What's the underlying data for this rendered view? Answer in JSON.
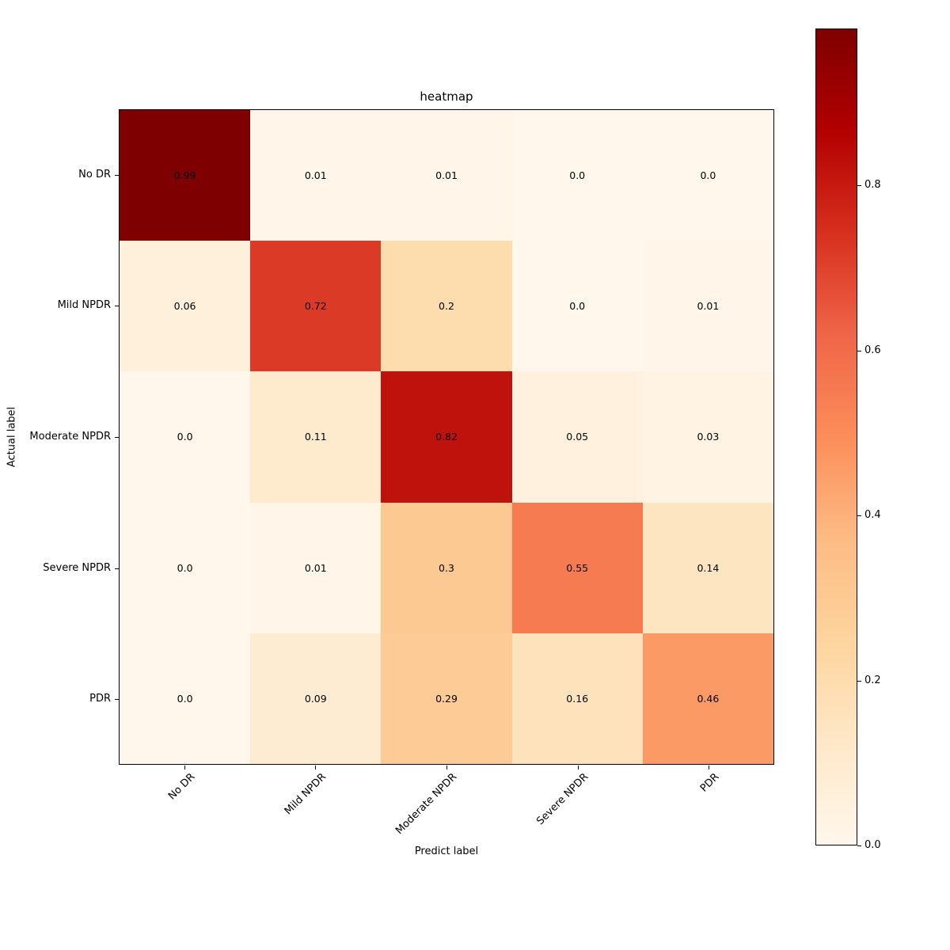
{
  "chart_data": {
    "type": "heatmap",
    "title": "heatmap",
    "xlabel": "Predict label",
    "ylabel": "Actual label",
    "x_categories": [
      "No DR",
      "Mild NPDR",
      "Moderate NPDR",
      "Severe NPDR",
      "PDR"
    ],
    "y_categories": [
      "No DR",
      "Mild NPDR",
      "Moderate NPDR",
      "Severe NPDR",
      "PDR"
    ],
    "values": [
      [
        0.99,
        0.01,
        0.01,
        0.0,
        0.0
      ],
      [
        0.06,
        0.72,
        0.2,
        0.0,
        0.01
      ],
      [
        0.0,
        0.11,
        0.82,
        0.05,
        0.03
      ],
      [
        0.0,
        0.01,
        0.3,
        0.55,
        0.14
      ],
      [
        0.0,
        0.09,
        0.29,
        0.16,
        0.46
      ]
    ],
    "cell_labels": [
      [
        "0.99",
        "0.01",
        "0.01",
        "0.0",
        "0.0"
      ],
      [
        "0.06",
        "0.72",
        "0.2",
        "0.0",
        "0.01"
      ],
      [
        "0.0",
        "0.11",
        "0.82",
        "0.05",
        "0.03"
      ],
      [
        "0.0",
        "0.01",
        "0.3",
        "0.55",
        "0.14"
      ],
      [
        "0.0",
        "0.09",
        "0.29",
        "0.16",
        "0.46"
      ]
    ],
    "vmin": 0.0,
    "vmax": 0.99,
    "annotation_color": "#000000",
    "grid": false,
    "legend_position": "none",
    "colormap": {
      "name": "OrRd",
      "stops": [
        {
          "pos": 0.0,
          "color": "#fff7ec"
        },
        {
          "pos": 0.125,
          "color": "#fee8c8"
        },
        {
          "pos": 0.25,
          "color": "#fdd49e"
        },
        {
          "pos": 0.375,
          "color": "#fdbb84"
        },
        {
          "pos": 0.5,
          "color": "#fc8d59"
        },
        {
          "pos": 0.625,
          "color": "#ef6548"
        },
        {
          "pos": 0.75,
          "color": "#d7301f"
        },
        {
          "pos": 0.875,
          "color": "#b30000"
        },
        {
          "pos": 1.0,
          "color": "#7f0000"
        }
      ]
    },
    "colorbar": {
      "position": "right",
      "ticks": [
        0.0,
        0.2,
        0.4,
        0.6,
        0.8
      ],
      "tick_labels": [
        "0.0",
        "0.2",
        "0.4",
        "0.6",
        "0.8"
      ]
    }
  }
}
